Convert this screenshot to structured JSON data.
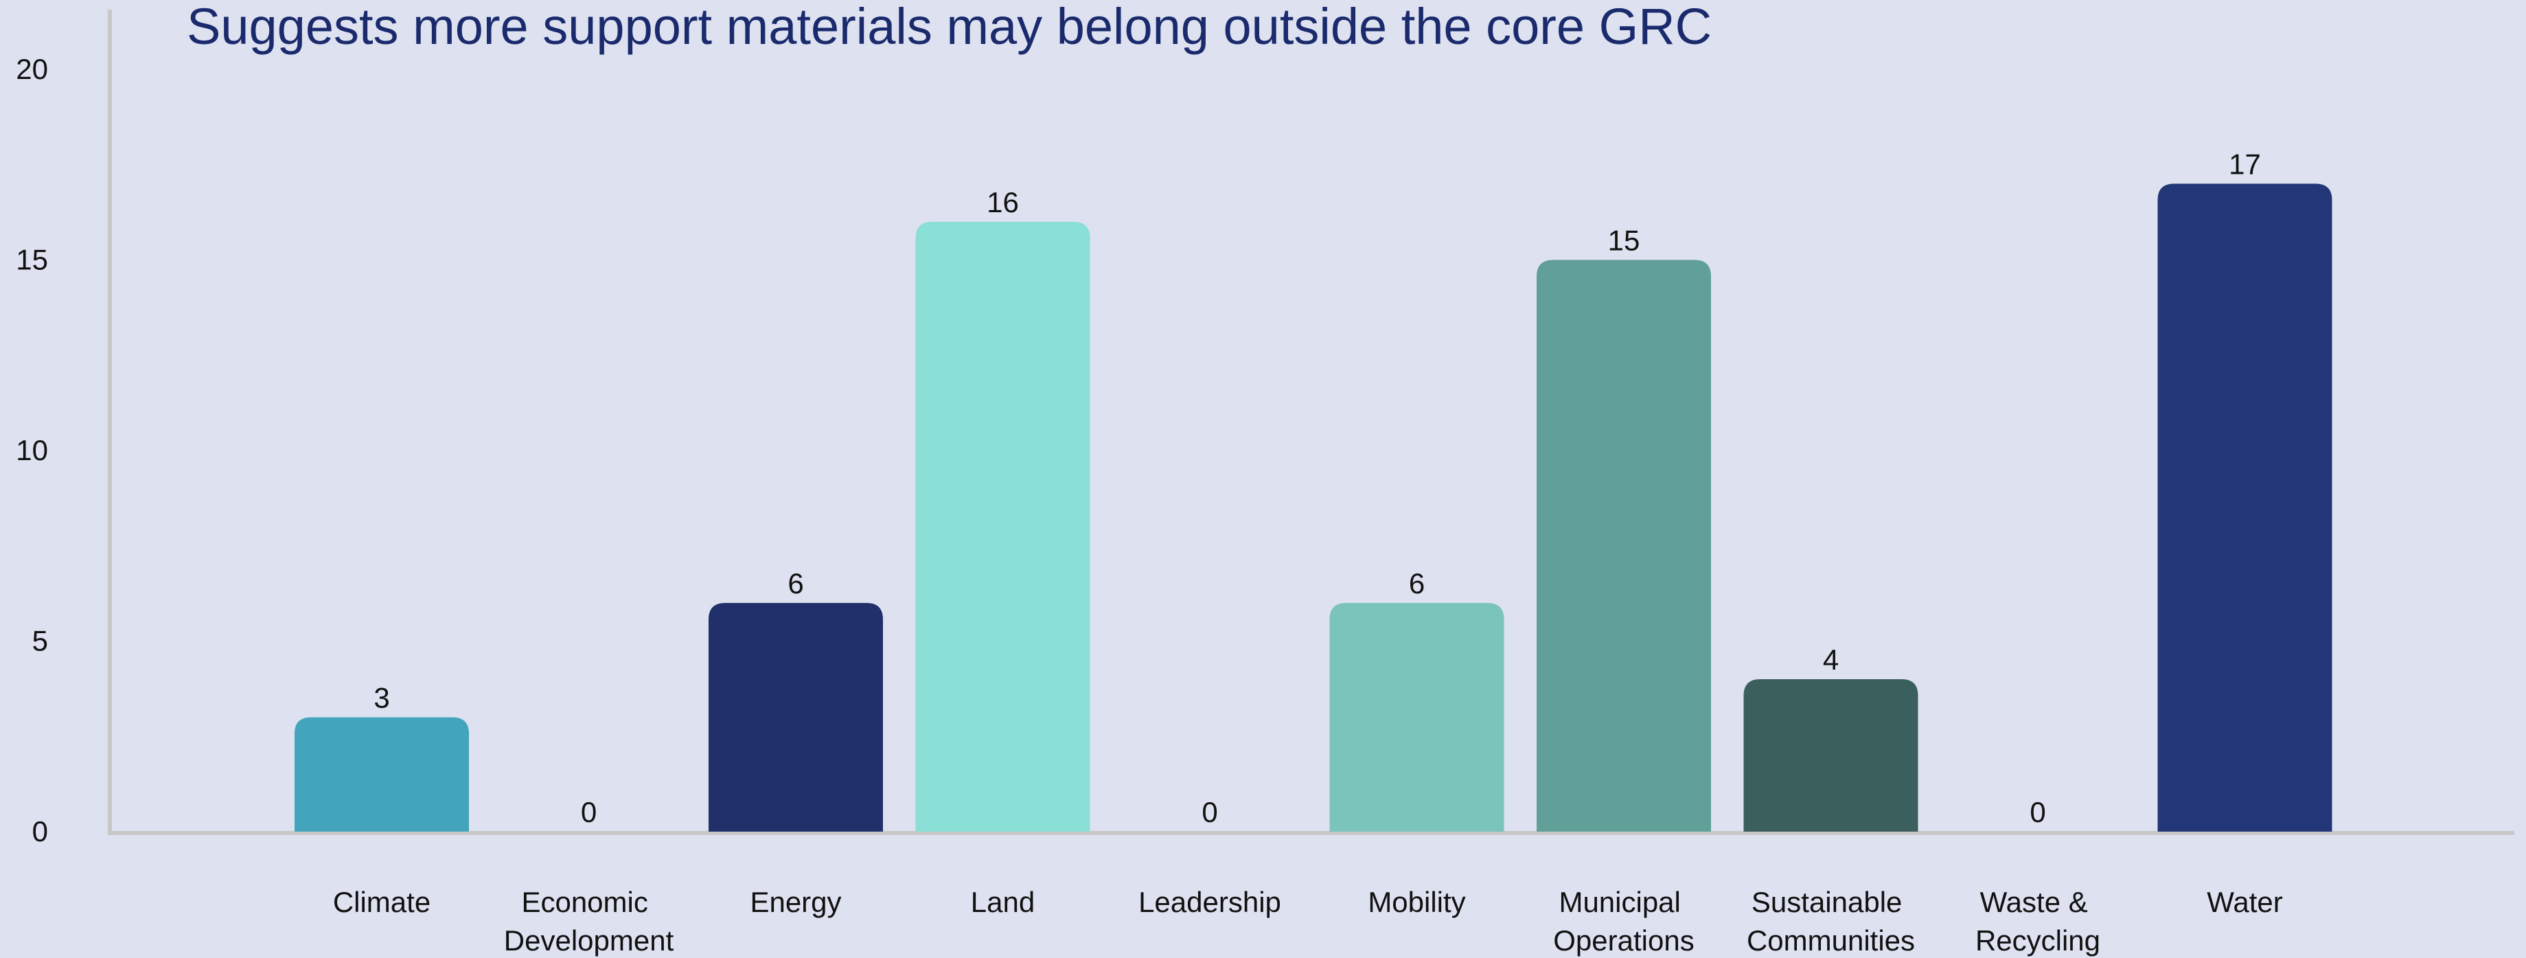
{
  "chart_data": {
    "type": "bar",
    "title": "Suggests more support materials may belong outside the core GRC",
    "categories": [
      "Climate",
      "Economic Development",
      "Energy",
      "Land",
      "Leadership",
      "Mobility",
      "Municipal Operations",
      "Sustainable Communities",
      "Waste & Recycling",
      "Water"
    ],
    "values": [
      3,
      0,
      6,
      16,
      0,
      6,
      15,
      4,
      0,
      17
    ],
    "colors": [
      "#42a5bb",
      null,
      "#212f6b",
      "#8adfd6",
      null,
      "#7ac4bc",
      "#60a098",
      "#3a5f5c",
      null,
      "#233677"
    ],
    "ylim": [
      0,
      20
    ],
    "yticks": [
      0,
      5,
      10,
      15,
      20
    ],
    "grid": false
  }
}
